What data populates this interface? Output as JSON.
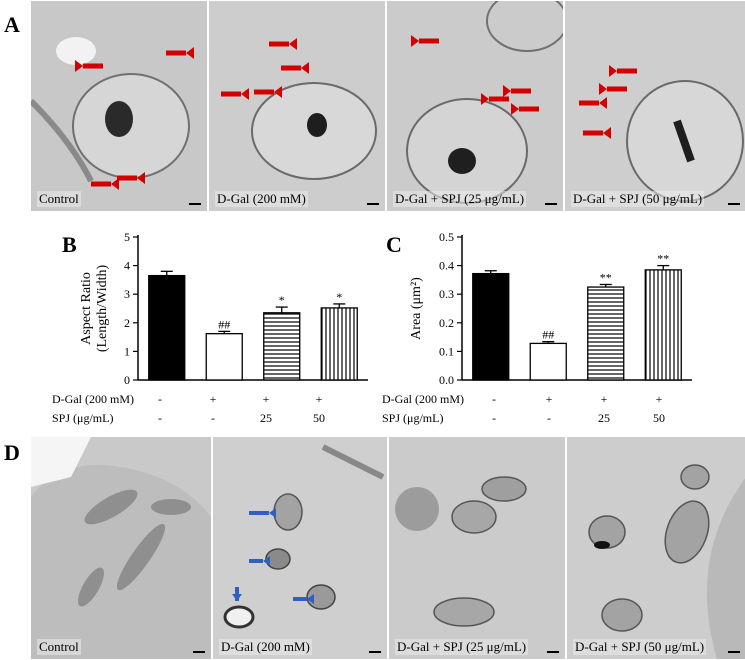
{
  "panels": {
    "a": "A",
    "b": "B",
    "c": "C",
    "d": "D"
  },
  "em_row_a": [
    {
      "caption": "Control"
    },
    {
      "caption": "D-Gal (200 mM)"
    },
    {
      "caption": "D-Gal + SPJ (25 μg/mL)"
    },
    {
      "caption": "D-Gal + SPJ (50 μg/mL)"
    }
  ],
  "em_row_d": [
    {
      "caption": "Control"
    },
    {
      "caption": "D-Gal (200 mM)"
    },
    {
      "caption": "D-Gal + SPJ (25 μg/mL)"
    },
    {
      "caption": "D-Gal + SPJ (50 μg/mL)"
    }
  ],
  "conditions": {
    "dgal_label": "D-Gal (200 mM)",
    "spj_label": "SPJ (μg/mL)",
    "dgal_values": [
      "-",
      "+",
      "+",
      "+"
    ],
    "spj_values": [
      "-",
      "-",
      "25",
      "50"
    ]
  },
  "chart_data": [
    {
      "type": "bar",
      "ylabel_line1": "Aspect Ratio",
      "ylabel_line2": "(Length/Width)",
      "ylim": [
        0,
        5
      ],
      "yticks": [
        "0",
        "1",
        "2",
        "3",
        "4",
        "5"
      ],
      "values": [
        3.65,
        1.62,
        2.35,
        2.52
      ],
      "errors": [
        0.15,
        0.08,
        0.2,
        0.14
      ],
      "annotations": [
        "",
        "##",
        "*",
        "*"
      ],
      "fills": [
        "solid",
        "white",
        "horizontal",
        "vertical"
      ]
    },
    {
      "type": "bar",
      "ylabel": "Area (μm²)",
      "ylim": [
        0,
        0.5
      ],
      "yticks": [
        "0.0",
        "0.1",
        "0.2",
        "0.3",
        "0.4",
        "0.5"
      ],
      "values": [
        0.372,
        0.128,
        0.325,
        0.385
      ],
      "errors": [
        0.01,
        0.006,
        0.009,
        0.015
      ],
      "annotations": [
        "",
        "##",
        "**",
        "**"
      ],
      "fills": [
        "solid",
        "white",
        "horizontal",
        "vertical"
      ]
    }
  ]
}
